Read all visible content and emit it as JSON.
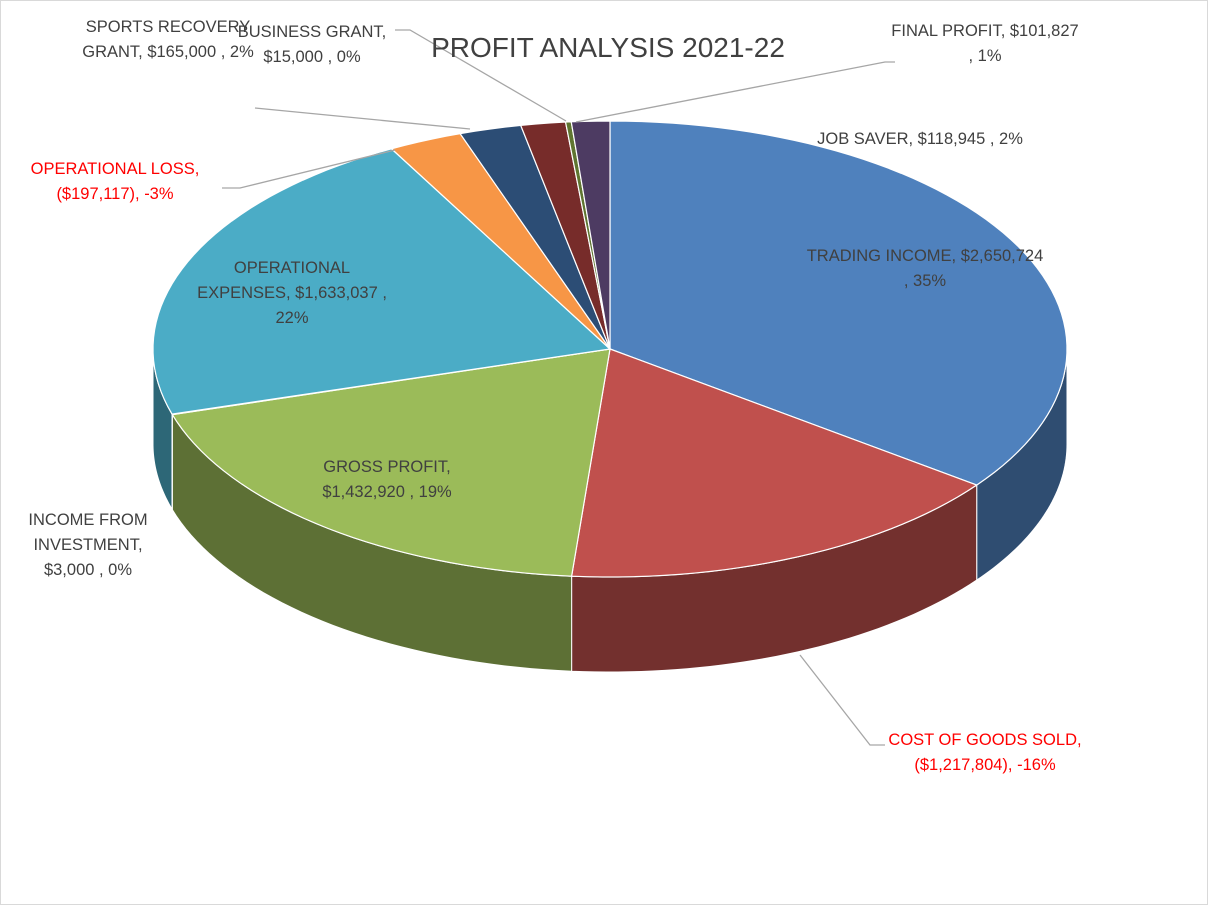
{
  "chart_data": {
    "type": "pie",
    "title": "PROFIT ANALYSIS 2021-22",
    "labels": [
      "TRADING INCOME, $2,650,724 , 35%",
      "COST OF GOODS SOLD, ($1,217,804), -16%",
      "GROSS PROFIT, $1,432,920 , 19%",
      "INCOME FROM INVESTMENT, $3,000 , 0%",
      "OPERATIONAL EXPENSES, $1,633,037 , 22%",
      "OPERATIONAL LOSS, ($197,117), -3%",
      "SPORTS RECOVERY GRANT, $165,000 , 2%",
      "JOB SAVER, $118,945 , 2%",
      "BUSINESS GRANT, $15,000 , 0%",
      "FINAL PROFIT, $101,827 , 1%"
    ],
    "values": [
      2650724,
      -1217804,
      1432920,
      3000,
      1633037,
      -197117,
      165000,
      118945,
      15000,
      101827
    ],
    "colors": [
      "#4f81bd",
      "#c0504d",
      "#9bbb59",
      "#8064a2",
      "#4bacc6",
      "#f79646",
      "#2c4d75",
      "#772c2a",
      "#5f7530",
      "#4d3b62"
    ]
  }
}
